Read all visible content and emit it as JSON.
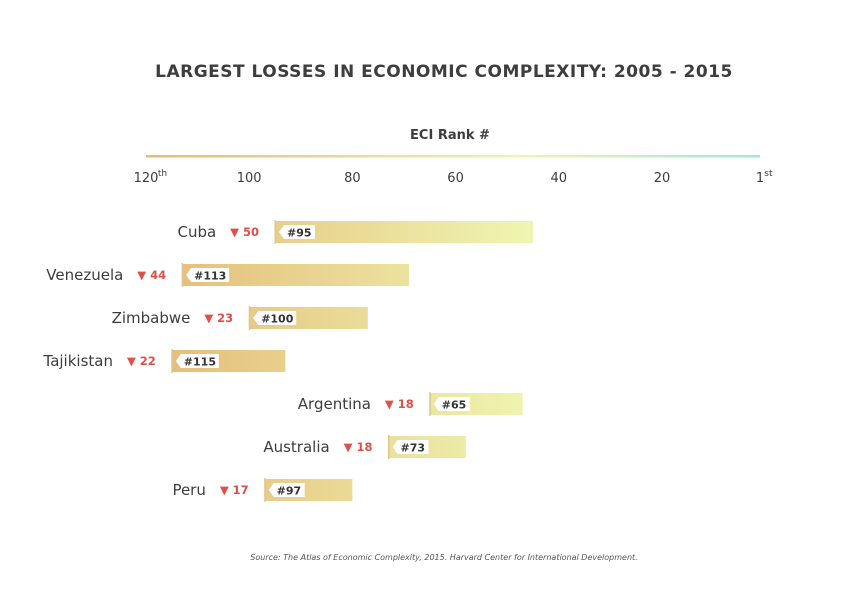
{
  "chart_data": {
    "type": "bar",
    "title": "LARGEST LOSSES IN ECONOMIC COMPLEXITY: 2005 - 2015",
    "xlabel": "ECI Rank #",
    "ylabel": "",
    "x_reversed": true,
    "xlim": [
      120,
      1
    ],
    "ticks": [
      {
        "value": 120,
        "label": "120",
        "sup": "th"
      },
      {
        "value": 100,
        "label": "100",
        "sup": ""
      },
      {
        "value": 80,
        "label": "80",
        "sup": ""
      },
      {
        "value": 60,
        "label": "60",
        "sup": ""
      },
      {
        "value": 40,
        "label": "40",
        "sup": ""
      },
      {
        "value": 20,
        "label": "20",
        "sup": ""
      },
      {
        "value": 1,
        "label": "1",
        "sup": "st"
      }
    ],
    "categories": [
      "Cuba",
      "Venezuela",
      "Zimbabwe",
      "Tajikistan",
      "Argentina",
      "Australia",
      "Peru"
    ],
    "series": [
      {
        "values": [
          95,
          113,
          100,
          115,
          65,
          73,
          97
        ]
      },
      {
        "values": [
          45,
          69,
          77,
          93,
          47,
          58,
          80
        ]
      }
    ],
    "rank_labels": [
      "#95",
      "#113",
      "#100",
      "#115",
      "#65",
      "#73",
      "#97"
    ],
    "drop_labels": [
      "▼ 50",
      "▼ 44",
      "▼ 23",
      "▼ 22",
      "▼ 18",
      "▼ 18",
      "▼ 17"
    ],
    "drops": [
      50,
      44,
      23,
      22,
      18,
      18,
      17
    ],
    "colors": {
      "gradient_low": "#e5ba78",
      "gradient_mid": "#eef5b0",
      "gradient_high": "#9fe8d5",
      "drop": "#e0504a",
      "text": "#3d3d3d"
    }
  },
  "source": "Source: The Atlas of Economic Complexity, 2015. Harvard Center for International Development."
}
